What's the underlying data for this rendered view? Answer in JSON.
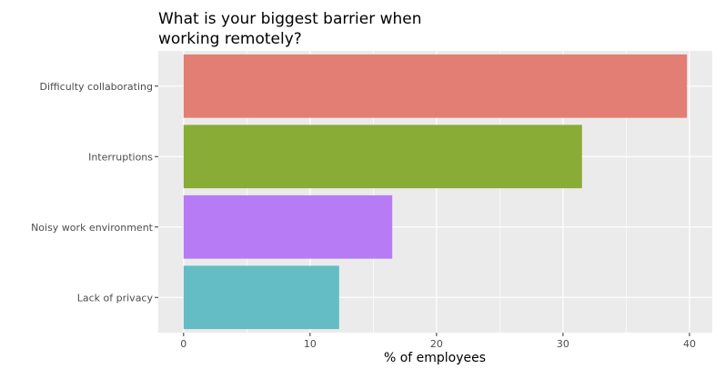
{
  "chart_data": {
    "type": "bar",
    "orientation": "horizontal",
    "title": [
      "What is your biggest barrier when",
      "working remotely?"
    ],
    "xlabel": "% of employees",
    "ylabel": "",
    "categories": [
      "Difficulty collaborating",
      "Interruptions",
      "Noisy work environment",
      "Lack of privacy"
    ],
    "values": [
      39.8,
      31.5,
      16.5,
      12.3
    ],
    "colors": [
      "#e27e74",
      "#89ac36",
      "#b77bf6",
      "#64bdc4"
    ],
    "xlim": [
      -2,
      41.8
    ],
    "x_ticks": [
      0,
      10,
      20,
      30,
      40
    ],
    "x_tick_labels": [
      "0",
      "10",
      "20",
      "30",
      "40"
    ],
    "grid": true,
    "legend": "none",
    "panel_background": "#ebebeb",
    "grid_color": "#ffffff"
  }
}
